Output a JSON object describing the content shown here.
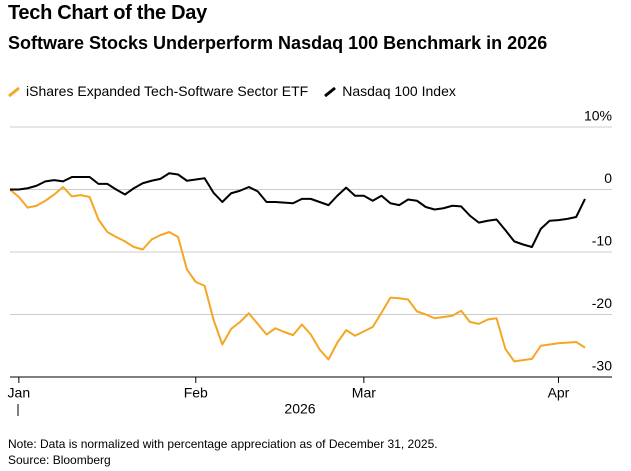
{
  "chart_data": {
    "type": "line",
    "title": "Tech Chart of the Day",
    "subtitle": "Software Stocks Underperform Nasdaq 100 Benchmark in 2026",
    "xlabel": "2026",
    "note": "Note: Data is normalized with percentage appreciation as of December 31, 2025.",
    "source": "Source: Bloomberg",
    "categories": [
      null,
      "Jan",
      null,
      null,
      null,
      null,
      null,
      null,
      null,
      null,
      null,
      null,
      null,
      null,
      null,
      null,
      null,
      null,
      null,
      null,
      null,
      "Feb",
      null,
      null,
      null,
      null,
      null,
      null,
      null,
      null,
      null,
      null,
      null,
      null,
      null,
      null,
      null,
      null,
      null,
      null,
      "Mar",
      null,
      null,
      null,
      null,
      null,
      null,
      null,
      null,
      null,
      null,
      null,
      null,
      null,
      null,
      null,
      null,
      null,
      null,
      null,
      null,
      null,
      "Apr",
      null,
      null,
      null
    ],
    "series": [
      {
        "name": "iShares Expanded Tech-Software Sector ETF",
        "color": "#f5a623",
        "values": [
          0,
          -1.2,
          -2.9,
          -2.6,
          -1.8,
          -0.8,
          0.4,
          -1.1,
          -0.9,
          -1.2,
          -4.8,
          -6.8,
          -7.6,
          -8.3,
          -9.2,
          -9.6,
          -8.0,
          -7.3,
          -6.8,
          -7.6,
          -12.8,
          -14.8,
          -15.4,
          -20.8,
          -24.8,
          -22.3,
          -21.2,
          -19.8,
          -21.5,
          -23.2,
          -22.2,
          -22.8,
          -23.3,
          -21.6,
          -23.2,
          -25.6,
          -27.2,
          -24.5,
          -22.5,
          -23.4,
          -22.7,
          -22,
          -19.7,
          -17.3,
          -17.4,
          -17.6,
          -19.5,
          -20,
          -20.6,
          -20.4,
          -20.2,
          -19.4,
          -21.2,
          -21.5,
          -20.8,
          -20.6,
          -25.5,
          -27.5,
          -27.3,
          -27.1,
          -25,
          -24.8,
          -24.6,
          -24.5,
          -24.4,
          -25.3
        ]
      },
      {
        "name": "Nasdaq 100 Index",
        "color": "#000000",
        "values": [
          0,
          0,
          0.2,
          0.6,
          1.3,
          1.5,
          1.3,
          2,
          2,
          2,
          0.9,
          0.9,
          0,
          -0.8,
          0.2,
          1,
          1.4,
          1.7,
          2.6,
          2.4,
          1.4,
          1.6,
          1.8,
          -0.5,
          -2,
          -0.6,
          -0.2,
          0.4,
          -0.3,
          -2,
          -2,
          -2.1,
          -2.2,
          -1.5,
          -1.5,
          -2,
          -2.5,
          -1,
          0.3,
          -1,
          -1,
          -1.8,
          -1,
          -2.2,
          -2.5,
          -1.6,
          -1.8,
          -2.8,
          -3.2,
          -3,
          -2.6,
          -2.7,
          -4.2,
          -5.3,
          -5,
          -4.8,
          -6.5,
          -8.3,
          -8.8,
          -9.2,
          -6.3,
          -5,
          -4.9,
          -4.7,
          -4.4,
          -1.5
        ]
      }
    ],
    "ylim": [
      -30,
      10
    ],
    "yticks": [
      {
        "value": 10,
        "label": "10%"
      },
      0,
      -10,
      -20,
      -30
    ],
    "grid": true
  }
}
